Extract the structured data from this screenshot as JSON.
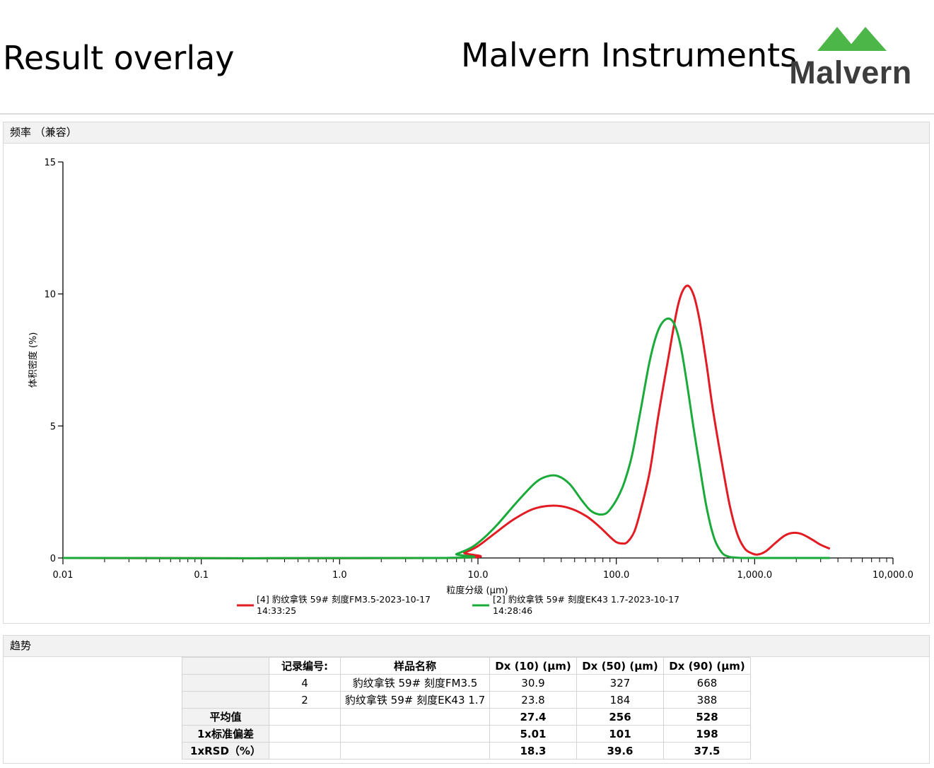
{
  "header": {
    "report_title": "Result overlay",
    "company": "Malvern Instruments",
    "logo_text": "Malvern",
    "logo_color": "#4cb648"
  },
  "chart_panel": {
    "title": "频率 （兼容）"
  },
  "trend_panel": {
    "title": "趋势"
  },
  "chart_data": {
    "type": "line",
    "xlabel": "粒度分级 (μm)",
    "ylabel": "体积密度 (%)",
    "xscale": "log",
    "xlim": [
      0.01,
      10000
    ],
    "ylim": [
      0,
      15
    ],
    "x_ticks": [
      "0.01",
      "0.1",
      "1.0",
      "10.0",
      "100.0",
      "1,000.0",
      "10,000.0"
    ],
    "y_ticks": [
      "0",
      "5",
      "10",
      "15"
    ],
    "legend_position": "bottom",
    "series": [
      {
        "name": "[4] 豹纹拿铁 59# 刻度FM3.5-2023-10-17 14:33:25",
        "name_line1": "[4] 豹纹拿铁 59# 刻度FM3.5-2023-10-17",
        "name_line2": "14:33:25",
        "color": "#e31b23",
        "x": [
          0.01,
          6.0,
          8.0,
          10,
          13,
          18,
          25,
          34,
          45,
          60,
          75,
          90,
          100,
          110,
          120,
          135,
          150,
          175,
          200,
          240,
          280,
          320,
          360,
          400,
          450,
          500,
          580,
          660,
          750,
          850,
          950,
          1050,
          1200,
          1400,
          1650,
          1900,
          2200,
          2600,
          3000,
          3500
        ],
        "y": [
          0,
          0,
          0.2,
          0.45,
          0.9,
          1.45,
          1.85,
          1.98,
          1.9,
          1.6,
          1.2,
          0.8,
          0.6,
          0.55,
          0.6,
          1.0,
          1.8,
          3.3,
          5.3,
          7.7,
          9.6,
          10.3,
          10.0,
          9.0,
          7.3,
          5.6,
          3.6,
          2.0,
          0.9,
          0.35,
          0.18,
          0.13,
          0.25,
          0.55,
          0.85,
          0.95,
          0.9,
          0.7,
          0.5,
          0.35
        ]
      },
      {
        "name": "[2] 豹纹拿铁 59# 刻度EK43 1.7-2023-10-17 14:28:46",
        "name_line1": "[2] 豹纹拿铁 59# 刻度EK43 1.7-2023-10-17",
        "name_line2": "14:28:46",
        "color": "#1aaa39",
        "x": [
          0.01,
          5.5,
          7.0,
          9.0,
          11,
          14,
          19,
          26,
          32,
          38,
          46,
          56,
          65,
          75,
          85,
          95,
          105,
          115,
          130,
          150,
          175,
          200,
          230,
          260,
          290,
          320,
          360,
          400,
          450,
          510,
          580,
          650,
          720,
          800,
          900,
          1000,
          1500,
          3500
        ],
        "y": [
          0,
          0,
          0.15,
          0.4,
          0.75,
          1.3,
          2.1,
          2.85,
          3.1,
          3.1,
          2.8,
          2.2,
          1.8,
          1.65,
          1.7,
          2.0,
          2.4,
          2.9,
          3.9,
          5.6,
          7.5,
          8.6,
          9.05,
          8.9,
          8.1,
          6.8,
          5.0,
          3.5,
          1.9,
          0.75,
          0.2,
          0.05,
          0.02,
          0.0,
          0.0,
          0.0,
          0.0,
          0.0
        ]
      }
    ]
  },
  "table": {
    "headers": [
      "记录编号:",
      "样品名称",
      "Dx (10) (µm)",
      "Dx (50) (µm)",
      "Dx (90) (µm)"
    ],
    "rows": [
      {
        "label": "",
        "record": "4",
        "sample": "豹纹拿铁 59# 刻度FM3.5",
        "dx10": "30.9",
        "dx50": "327",
        "dx90": "668"
      },
      {
        "label": "",
        "record": "2",
        "sample": "豹纹拿铁 59# 刻度EK43 1.7",
        "dx10": "23.8",
        "dx50": "184",
        "dx90": "388"
      },
      {
        "label": "平均值",
        "record": "",
        "sample": "",
        "dx10": "27.4",
        "dx50": "256",
        "dx90": "528"
      },
      {
        "label": "1x标准偏差",
        "record": "",
        "sample": "",
        "dx10": "5.01",
        "dx50": "101",
        "dx90": "198"
      },
      {
        "label": "1xRSD（%）",
        "record": "",
        "sample": "",
        "dx10": "18.3",
        "dx50": "39.6",
        "dx90": "37.5"
      }
    ]
  }
}
